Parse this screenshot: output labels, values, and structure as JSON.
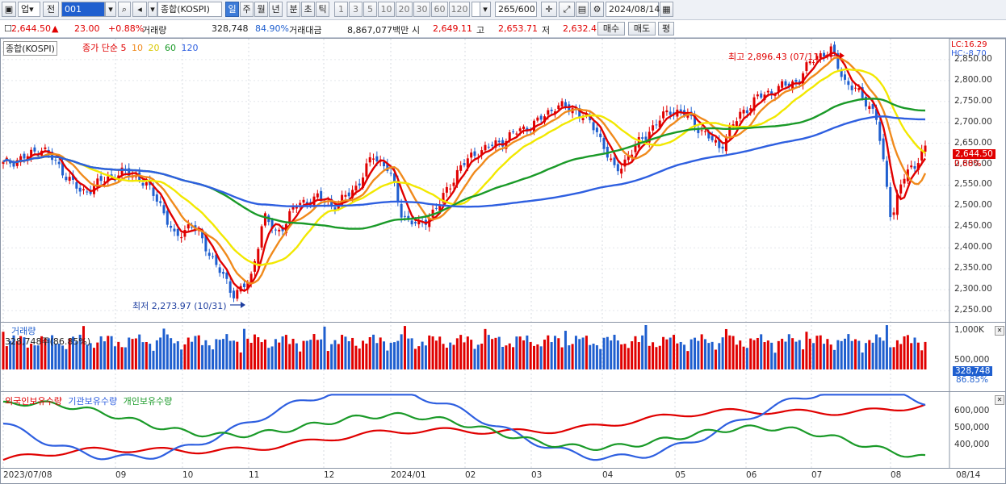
{
  "toolbar": {
    "type_select": "업",
    "jeon": "전",
    "code": "001",
    "name": "종합(KOSPI)",
    "periods": [
      "일",
      "주",
      "월",
      "년",
      "분",
      "초",
      "틱"
    ],
    "active_period": "일",
    "minutes": [
      "1",
      "3",
      "5",
      "10",
      "20",
      "30",
      "60",
      "120"
    ],
    "count": "265/600",
    "date": "2024/08/14"
  },
  "quote": {
    "price": "2,644.50",
    "change": "23.00",
    "change_pct": "+0.88%",
    "volume_label": "거래량",
    "volume": "328,748",
    "volume_pct": "84.90%",
    "amount_label": "거래대금",
    "amount": "8,867,077백만",
    "open_label": "시",
    "open": "2,649.11",
    "high_label": "고",
    "high": "2,653.71",
    "low_label": "저",
    "low": "2,632.4",
    "buy": "매수",
    "sell": "매도",
    "avg": "평"
  },
  "price_panel": {
    "title": "종합(KOSPI)",
    "legend_prefix": "종가 단순",
    "ma_periods": [
      "5",
      "10",
      "20",
      "60",
      "120"
    ],
    "ma_colors": [
      "#e00000",
      "#f08a1c",
      "#f2e800",
      "#1a9a28",
      "#2e5fe0"
    ],
    "lc": "LC:16.29",
    "hc": "HC:-8.70",
    "high_note": "최고 2,896.43 (07/11)",
    "low_note": "최저 2,273.97 (10/31)",
    "current_tag": "2,644.50",
    "current_pct": "0.88%",
    "y_ticks": [
      "2,850.00",
      "2,800.00",
      "2,750.00",
      "2,700.00",
      "2,650.00",
      "2,600.00",
      "2,550.00",
      "2,500.00",
      "2,450.00",
      "2,400.00",
      "2,350.00",
      "2,300.00",
      "2,250.00"
    ]
  },
  "volume_panel": {
    "title": "거래량",
    "sub": "328,748주(86.85%)",
    "y_ticks": [
      "1,000K",
      "500,000"
    ],
    "current_tag": "328,748",
    "current_pct": "86.85%"
  },
  "holding_panel": {
    "series": [
      {
        "name": "외국인보유수량",
        "color": "#e00000"
      },
      {
        "name": "기관보유수량",
        "color": "#2e5fe0"
      },
      {
        "name": "개인보유수량",
        "color": "#1a9a28"
      }
    ],
    "y_ticks": [
      "600,000",
      "500,000",
      "400,000"
    ]
  },
  "x_axis": {
    "labels": [
      "2023/07/08",
      "09",
      "10",
      "11",
      "12",
      "2024/01",
      "02",
      "03",
      "04",
      "05",
      "06",
      "07",
      "08",
      "08/14"
    ]
  },
  "chart_data": {
    "type": "candlestick",
    "title": "종합(KOSPI)",
    "y_range": [
      2250,
      2900
    ],
    "series_moving_averages": [
      "5",
      "10",
      "20",
      "60",
      "120"
    ],
    "key_points": [
      {
        "label": "최고",
        "value": 2896.43,
        "date": "07/11"
      },
      {
        "label": "최저",
        "value": 2273.97,
        "date": "10/31"
      },
      {
        "label": "current",
        "value": 2644.5,
        "date": "2024/08/14"
      }
    ]
  }
}
